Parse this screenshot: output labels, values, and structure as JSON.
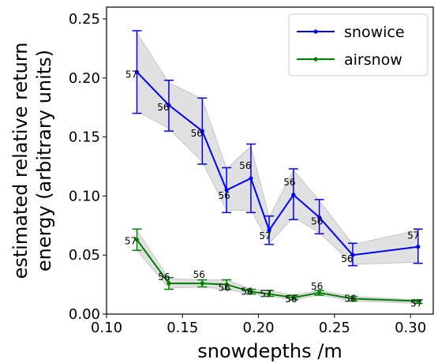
{
  "chart_data": {
    "type": "line",
    "xlabel": "snowdepths /m",
    "ylabel": "estimated relative return\nenergy (arbitrary units)",
    "xlim": [
      0.1,
      0.315
    ],
    "ylim": [
      0.0,
      0.26
    ],
    "x_ticks": [
      "0.10",
      "0.15",
      "0.20",
      "0.25",
      "0.30"
    ],
    "y_ticks": [
      "0.00",
      "0.05",
      "0.10",
      "0.15",
      "0.20",
      "0.25"
    ],
    "legend_position": "top-right",
    "grid": false,
    "series": [
      {
        "name": "snowice",
        "color": "#0000ff",
        "points": [
          {
            "x": 0.12,
            "y": 0.205,
            "lo": 0.17,
            "hi": 0.24,
            "band_lo": 0.172,
            "band_hi": 0.238,
            "label": "57"
          },
          {
            "x": 0.141,
            "y": 0.177,
            "lo": 0.155,
            "hi": 0.198,
            "band_lo": 0.157,
            "band_hi": 0.196,
            "label": "56"
          },
          {
            "x": 0.163,
            "y": 0.155,
            "lo": 0.127,
            "hi": 0.183,
            "band_lo": 0.129,
            "band_hi": 0.182,
            "label": "56"
          },
          {
            "x": 0.179,
            "y": 0.105,
            "lo": 0.086,
            "hi": 0.124,
            "band_lo": 0.088,
            "band_hi": 0.123,
            "label": "56"
          },
          {
            "x": 0.195,
            "y": 0.115,
            "lo": 0.086,
            "hi": 0.144,
            "band_lo": 0.088,
            "band_hi": 0.142,
            "label": "56"
          },
          {
            "x": 0.207,
            "y": 0.071,
            "lo": 0.059,
            "hi": 0.083,
            "band_lo": 0.06,
            "band_hi": 0.082,
            "label": "57"
          },
          {
            "x": 0.223,
            "y": 0.101,
            "lo": 0.08,
            "hi": 0.123,
            "band_lo": 0.082,
            "band_hi": 0.122,
            "label": "56"
          },
          {
            "x": 0.24,
            "y": 0.082,
            "lo": 0.068,
            "hi": 0.097,
            "band_lo": 0.069,
            "band_hi": 0.096,
            "label": "56"
          },
          {
            "x": 0.262,
            "y": 0.05,
            "lo": 0.041,
            "hi": 0.06,
            "band_lo": 0.042,
            "band_hi": 0.059,
            "label": "56"
          },
          {
            "x": 0.305,
            "y": 0.057,
            "lo": 0.043,
            "hi": 0.072,
            "band_lo": 0.044,
            "band_hi": 0.071,
            "label": "57"
          }
        ]
      },
      {
        "name": "airsnow",
        "color": "#008000",
        "points": [
          {
            "x": 0.12,
            "y": 0.063,
            "lo": 0.054,
            "hi": 0.072,
            "band_lo": 0.054,
            "band_hi": 0.071,
            "label": "57"
          },
          {
            "x": 0.141,
            "y": 0.026,
            "lo": 0.021,
            "hi": 0.031,
            "band_lo": 0.022,
            "band_hi": 0.03,
            "label": "56"
          },
          {
            "x": 0.163,
            "y": 0.026,
            "lo": 0.023,
            "hi": 0.029,
            "band_lo": 0.023,
            "band_hi": 0.029,
            "label": "56"
          },
          {
            "x": 0.179,
            "y": 0.025,
            "lo": 0.021,
            "hi": 0.029,
            "band_lo": 0.021,
            "band_hi": 0.029,
            "label": "56"
          },
          {
            "x": 0.195,
            "y": 0.019,
            "lo": 0.017,
            "hi": 0.021,
            "band_lo": 0.017,
            "band_hi": 0.021,
            "label": "56"
          },
          {
            "x": 0.207,
            "y": 0.017,
            "lo": 0.015,
            "hi": 0.02,
            "band_lo": 0.015,
            "band_hi": 0.02,
            "label": "57"
          },
          {
            "x": 0.223,
            "y": 0.014,
            "lo": 0.012,
            "hi": 0.016,
            "band_lo": 0.012,
            "band_hi": 0.016,
            "label": "56"
          },
          {
            "x": 0.24,
            "y": 0.018,
            "lo": 0.016,
            "hi": 0.02,
            "band_lo": 0.016,
            "band_hi": 0.02,
            "label": "56"
          },
          {
            "x": 0.262,
            "y": 0.013,
            "lo": 0.011,
            "hi": 0.015,
            "band_lo": 0.011,
            "band_hi": 0.015,
            "label": "56"
          },
          {
            "x": 0.305,
            "y": 0.011,
            "lo": 0.009,
            "hi": 0.012,
            "band_lo": 0.009,
            "band_hi": 0.012,
            "label": "57"
          }
        ]
      }
    ]
  }
}
